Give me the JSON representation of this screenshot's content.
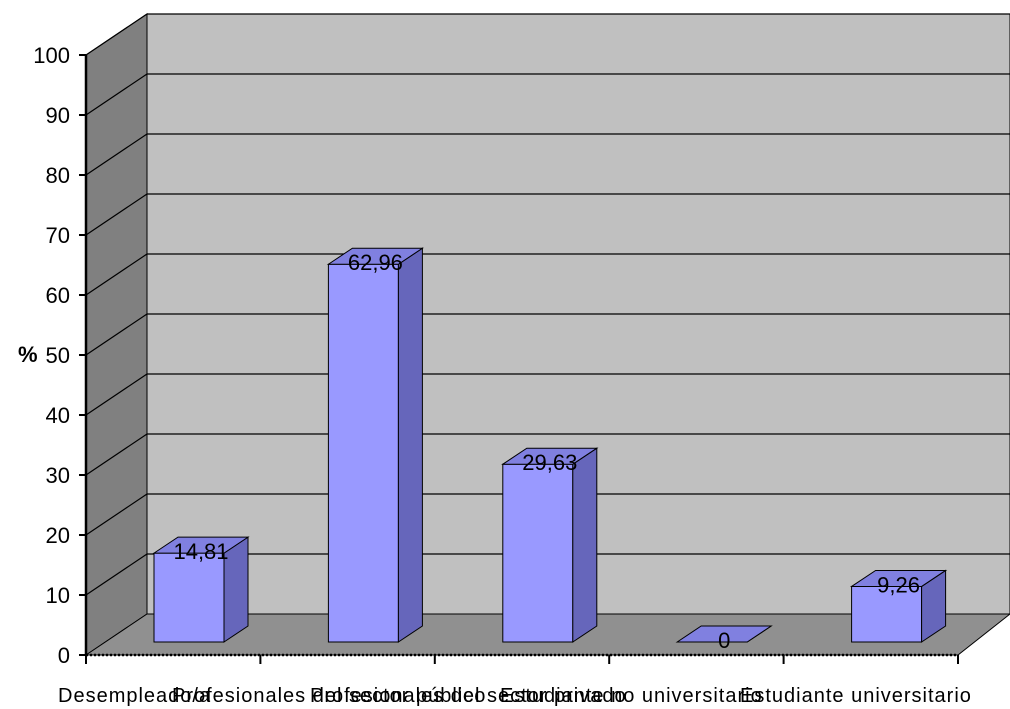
{
  "chart_data": {
    "type": "bar",
    "categories": [
      "Desempleado/a",
      "Profesionales del sector público",
      "Profesionales del sector privado",
      "Estudiante no universitario",
      "Estudiante universitario"
    ],
    "series": [
      {
        "values": [
          14.81,
          62.96,
          29.63,
          0,
          9.26
        ]
      }
    ],
    "data_labels": [
      "14,81",
      "62,96",
      "29,63",
      "0",
      "9,26"
    ],
    "ylabel": "%",
    "ylim": [
      0,
      100
    ],
    "yticks": [
      "0",
      "10",
      "20",
      "30",
      "40",
      "50",
      "60",
      "70",
      "80",
      "90",
      "100"
    ],
    "grid": true,
    "style": "3d-column",
    "colors": {
      "bar_front": "#9999ff",
      "bar_side": "#6666bb",
      "bar_top": "#8080e0",
      "wall": "#c0c0c0",
      "floor": "#909090",
      "side_wall": "#808080"
    }
  }
}
